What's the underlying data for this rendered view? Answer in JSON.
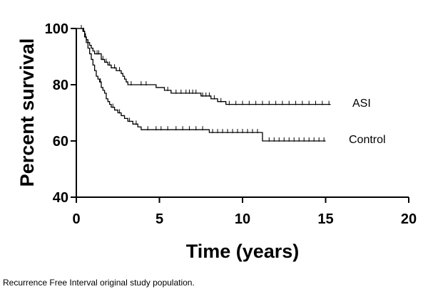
{
  "chart_data": {
    "type": "line",
    "subtype": "kaplan-meier",
    "xlabel": "Time (years)",
    "ylabel": "Percent survival",
    "xlim": [
      0,
      20
    ],
    "ylim": [
      40,
      100
    ],
    "xticks": [
      0,
      5,
      10,
      15,
      20
    ],
    "yticks": [
      40,
      60,
      80,
      100
    ],
    "grid": false,
    "legend": "inline-right",
    "series": [
      {
        "name": "ASI",
        "color": "#000000",
        "steps": [
          [
            0,
            100
          ],
          [
            0.4,
            99
          ],
          [
            0.5,
            97
          ],
          [
            0.6,
            96
          ],
          [
            0.7,
            95
          ],
          [
            0.8,
            94
          ],
          [
            0.9,
            93
          ],
          [
            1.0,
            92
          ],
          [
            1.1,
            91
          ],
          [
            1.5,
            89
          ],
          [
            1.7,
            88
          ],
          [
            1.9,
            87
          ],
          [
            2.1,
            86
          ],
          [
            2.4,
            85
          ],
          [
            2.7,
            84
          ],
          [
            2.8,
            83
          ],
          [
            2.9,
            82
          ],
          [
            3.0,
            81
          ],
          [
            3.1,
            80
          ],
          [
            4.8,
            79
          ],
          [
            5.3,
            78
          ],
          [
            5.7,
            77
          ],
          [
            7.5,
            76
          ],
          [
            8.1,
            75
          ],
          [
            8.5,
            74
          ],
          [
            9.0,
            73
          ],
          [
            15.3,
            73
          ]
        ],
        "censored": [
          0.3,
          0.45,
          0.55,
          1.25,
          1.35,
          1.6,
          1.8,
          2.0,
          2.3,
          2.6,
          3.3,
          3.9,
          4.2,
          5.5,
          6.0,
          6.3,
          6.6,
          6.8,
          7.0,
          7.2,
          7.6,
          7.8,
          8.0,
          8.3,
          8.7,
          9.2,
          9.6,
          10.0,
          10.4,
          10.8,
          11.2,
          11.6,
          12.0,
          12.4,
          12.8,
          13.2,
          13.6,
          14.0,
          14.4,
          14.8,
          15.2
        ]
      },
      {
        "name": "Control",
        "color": "#000000",
        "steps": [
          [
            0,
            100
          ],
          [
            0.4,
            99
          ],
          [
            0.5,
            97
          ],
          [
            0.6,
            95
          ],
          [
            0.7,
            93
          ],
          [
            0.8,
            91
          ],
          [
            0.9,
            89
          ],
          [
            1.0,
            87
          ],
          [
            1.1,
            85
          ],
          [
            1.2,
            83
          ],
          [
            1.3,
            82
          ],
          [
            1.4,
            81
          ],
          [
            1.5,
            79
          ],
          [
            1.6,
            78
          ],
          [
            1.7,
            77
          ],
          [
            1.8,
            75
          ],
          [
            1.9,
            74
          ],
          [
            2.0,
            73
          ],
          [
            2.1,
            72
          ],
          [
            2.3,
            71
          ],
          [
            2.5,
            70
          ],
          [
            2.7,
            69
          ],
          [
            2.9,
            68
          ],
          [
            3.1,
            67
          ],
          [
            3.4,
            66
          ],
          [
            3.7,
            65
          ],
          [
            3.9,
            64
          ],
          [
            8.0,
            63
          ],
          [
            11.2,
            60
          ],
          [
            15.0,
            60
          ]
        ],
        "censored": [
          0.3,
          0.55,
          1.45,
          2.2,
          2.6,
          3.2,
          3.6,
          4.3,
          4.8,
          5.1,
          5.5,
          6.0,
          6.4,
          6.8,
          7.2,
          7.6,
          8.2,
          8.5,
          8.8,
          9.1,
          9.4,
          9.7,
          10.0,
          10.3,
          10.6,
          10.9,
          11.6,
          11.9,
          12.2,
          12.5,
          12.8,
          13.1,
          13.4,
          13.7,
          14.0,
          14.3,
          14.6,
          14.9
        ]
      }
    ]
  },
  "caption": "Recurrence Free Interval original study population."
}
